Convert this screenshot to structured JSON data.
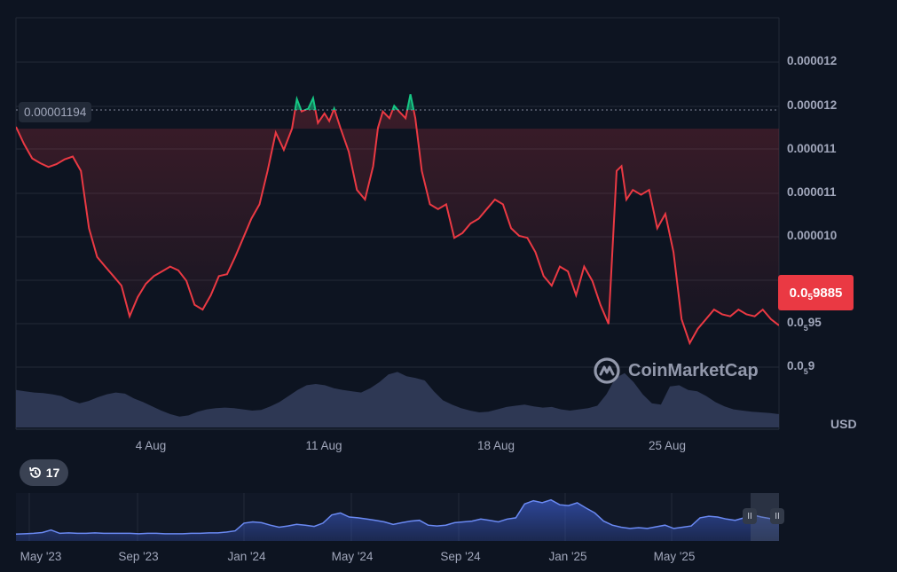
{
  "chart_data": {
    "type": "line",
    "currency": "USD",
    "reference_label": "0.00001194",
    "reference_value": 1.194e-05,
    "current_price": {
      "prefix": "0.0",
      "zeros": "5",
      "digits": "9885"
    },
    "y_ticks": [
      {
        "text": "0.000012"
      },
      {
        "text": "0.000012"
      },
      {
        "text": "0.000011"
      },
      {
        "text": "0.000011"
      },
      {
        "text": "0.000010"
      },
      {
        "prefix": "0.0",
        "sub": "5",
        "rest": "95"
      },
      {
        "prefix": "0.0",
        "sub": "5",
        "rest": "9"
      }
    ],
    "x_ticks": [
      "4 Aug",
      "11 Aug",
      "18 Aug",
      "25 Aug"
    ],
    "navigator_ticks": [
      "May '23",
      "Sep '23",
      "Jan '24",
      "May '24",
      "Sep '24",
      "Jan '25",
      "May '25"
    ],
    "price_series": [
      {
        "t": 0,
        "v": 1.196e-05
      },
      {
        "t": 0.5,
        "v": 1.178e-05
      },
      {
        "t": 1,
        "v": 1.163e-05
      },
      {
        "t": 1.5,
        "v": 1.158e-05
      },
      {
        "t": 2,
        "v": 1.154e-05
      },
      {
        "t": 2.5,
        "v": 1.157e-05
      },
      {
        "t": 3,
        "v": 1.162e-05
      },
      {
        "t": 3.5,
        "v": 1.165e-05
      },
      {
        "t": 4,
        "v": 1.15e-05
      },
      {
        "t": 4.5,
        "v": 1.09e-05
      },
      {
        "t": 5,
        "v": 1.06e-05
      },
      {
        "t": 5.5,
        "v": 1.05e-05
      },
      {
        "t": 6,
        "v": 1.04e-05
      },
      {
        "t": 6.5,
        "v": 1.03e-05
      },
      {
        "t": 7,
        "v": 9.98e-06
      },
      {
        "t": 7.5,
        "v": 1.018e-05
      },
      {
        "t": 8,
        "v": 1.032e-05
      },
      {
        "t": 8.5,
        "v": 1.04e-05
      },
      {
        "t": 9,
        "v": 1.045e-05
      },
      {
        "t": 9.5,
        "v": 1.05e-05
      },
      {
        "t": 10,
        "v": 1.046e-05
      },
      {
        "t": 10.5,
        "v": 1.035e-05
      },
      {
        "t": 11,
        "v": 1.01e-05
      },
      {
        "t": 11.5,
        "v": 1.005e-05
      },
      {
        "t": 12,
        "v": 1.02e-05
      },
      {
        "t": 12.5,
        "v": 1.04e-05
      },
      {
        "t": 13,
        "v": 1.042e-05
      },
      {
        "t": 13.5,
        "v": 1.06e-05
      },
      {
        "t": 14,
        "v": 1.08e-05
      },
      {
        "t": 14.5,
        "v": 1.1e-05
      },
      {
        "t": 15,
        "v": 1.115e-05
      },
      {
        "t": 15.5,
        "v": 1.15e-05
      },
      {
        "t": 16,
        "v": 1.19e-05
      },
      {
        "t": 16.5,
        "v": 1.172e-05
      },
      {
        "t": 17,
        "v": 1.194e-05
      },
      {
        "t": 17.3,
        "v": 1.225e-05
      },
      {
        "t": 17.6,
        "v": 1.212e-05
      },
      {
        "t": 18,
        "v": 1.215e-05
      },
      {
        "t": 18.3,
        "v": 1.226e-05
      },
      {
        "t": 18.6,
        "v": 1.2e-05
      },
      {
        "t": 19,
        "v": 1.21e-05
      },
      {
        "t": 19.3,
        "v": 1.202e-05
      },
      {
        "t": 19.6,
        "v": 1.215e-05
      },
      {
        "t": 20,
        "v": 1.194e-05
      },
      {
        "t": 20.5,
        "v": 1.17e-05
      },
      {
        "t": 21,
        "v": 1.13e-05
      },
      {
        "t": 21.5,
        "v": 1.12e-05
      },
      {
        "t": 22,
        "v": 1.155e-05
      },
      {
        "t": 22.3,
        "v": 1.195e-05
      },
      {
        "t": 22.6,
        "v": 1.212e-05
      },
      {
        "t": 23,
        "v": 1.205e-05
      },
      {
        "t": 23.3,
        "v": 1.218e-05
      },
      {
        "t": 23.6,
        "v": 1.212e-05
      },
      {
        "t": 24,
        "v": 1.205e-05
      },
      {
        "t": 24.3,
        "v": 1.23e-05
      },
      {
        "t": 24.6,
        "v": 1.205e-05
      },
      {
        "t": 25,
        "v": 1.15e-05
      },
      {
        "t": 25.5,
        "v": 1.115e-05
      },
      {
        "t": 26,
        "v": 1.11e-05
      },
      {
        "t": 26.5,
        "v": 1.115e-05
      },
      {
        "t": 27,
        "v": 1.08e-05
      },
      {
        "t": 27.5,
        "v": 1.085e-05
      },
      {
        "t": 28,
        "v": 1.095e-05
      },
      {
        "t": 28.5,
        "v": 1.1e-05
      },
      {
        "t": 29,
        "v": 1.11e-05
      },
      {
        "t": 29.5,
        "v": 1.12e-05
      },
      {
        "t": 30,
        "v": 1.115e-05
      },
      {
        "t": 30.5,
        "v": 1.09e-05
      },
      {
        "t": 31,
        "v": 1.082e-05
      },
      {
        "t": 31.5,
        "v": 1.08e-05
      },
      {
        "t": 32,
        "v": 1.065e-05
      },
      {
        "t": 32.5,
        "v": 1.04e-05
      },
      {
        "t": 33,
        "v": 1.03e-05
      },
      {
        "t": 33.5,
        "v": 1.05e-05
      },
      {
        "t": 34,
        "v": 1.045e-05
      },
      {
        "t": 34.5,
        "v": 1.02e-05
      },
      {
        "t": 35,
        "v": 1.05e-05
      },
      {
        "t": 35.5,
        "v": 1.035e-05
      },
      {
        "t": 36,
        "v": 1.01e-05
      },
      {
        "t": 36.5,
        "v": 9.9e-06
      },
      {
        "t": 37,
        "v": 1.15e-05
      },
      {
        "t": 37.3,
        "v": 1.155e-05
      },
      {
        "t": 37.6,
        "v": 1.12e-05
      },
      {
        "t": 38,
        "v": 1.13e-05
      },
      {
        "t": 38.5,
        "v": 1.125e-05
      },
      {
        "t": 39,
        "v": 1.13e-05
      },
      {
        "t": 39.5,
        "v": 1.09e-05
      },
      {
        "t": 40,
        "v": 1.105e-05
      },
      {
        "t": 40.5,
        "v": 1.065e-05
      },
      {
        "t": 41,
        "v": 9.95e-06
      },
      {
        "t": 41.5,
        "v": 9.7e-06
      },
      {
        "t": 42,
        "v": 9.85e-06
      },
      {
        "t": 42.5,
        "v": 9.95e-06
      },
      {
        "t": 43,
        "v": 1.005e-05
      },
      {
        "t": 43.5,
        "v": 1e-05
      },
      {
        "t": 44,
        "v": 9.98e-06
      },
      {
        "t": 44.5,
        "v": 1.005e-05
      },
      {
        "t": 45,
        "v": 1e-05
      },
      {
        "t": 45.5,
        "v": 9.98e-06
      },
      {
        "t": 46,
        "v": 1.005e-05
      },
      {
        "t": 46.5,
        "v": 9.95e-06
      },
      {
        "t": 47,
        "v": 9.885e-06
      }
    ],
    "volume": [
      0.62,
      0.6,
      0.58,
      0.57,
      0.55,
      0.52,
      0.45,
      0.4,
      0.44,
      0.5,
      0.55,
      0.58,
      0.56,
      0.48,
      0.42,
      0.35,
      0.28,
      0.22,
      0.18,
      0.2,
      0.26,
      0.3,
      0.32,
      0.33,
      0.32,
      0.3,
      0.28,
      0.29,
      0.35,
      0.42,
      0.52,
      0.62,
      0.7,
      0.72,
      0.7,
      0.65,
      0.62,
      0.6,
      0.58,
      0.65,
      0.75,
      0.88,
      0.92,
      0.85,
      0.82,
      0.78,
      0.6,
      0.45,
      0.38,
      0.32,
      0.28,
      0.25,
      0.26,
      0.3,
      0.34,
      0.36,
      0.38,
      0.35,
      0.33,
      0.34,
      0.3,
      0.28,
      0.3,
      0.32,
      0.36,
      0.55,
      0.82,
      0.9,
      0.75,
      0.55,
      0.4,
      0.38,
      0.68,
      0.7,
      0.62,
      0.6,
      0.52,
      0.42,
      0.35,
      0.3,
      0.28,
      0.26,
      0.25,
      0.24,
      0.22
    ],
    "navigator_series": [
      0.08,
      0.09,
      0.1,
      0.12,
      0.18,
      0.1,
      0.11,
      0.1,
      0.1,
      0.11,
      0.1,
      0.1,
      0.1,
      0.1,
      0.09,
      0.1,
      0.1,
      0.09,
      0.09,
      0.09,
      0.1,
      0.1,
      0.11,
      0.11,
      0.13,
      0.16,
      0.35,
      0.38,
      0.36,
      0.3,
      0.25,
      0.28,
      0.32,
      0.3,
      0.27,
      0.35,
      0.55,
      0.6,
      0.5,
      0.48,
      0.45,
      0.42,
      0.38,
      0.32,
      0.36,
      0.4,
      0.42,
      0.3,
      0.28,
      0.3,
      0.36,
      0.38,
      0.4,
      0.45,
      0.42,
      0.38,
      0.45,
      0.48,
      0.82,
      0.9,
      0.85,
      0.92,
      0.8,
      0.78,
      0.85,
      0.72,
      0.6,
      0.4,
      0.3,
      0.25,
      0.22,
      0.24,
      0.22,
      0.26,
      0.3,
      0.22,
      0.25,
      0.28,
      0.48,
      0.52,
      0.5,
      0.45,
      0.42,
      0.48,
      0.55,
      0.5,
      0.46,
      0.44
    ]
  },
  "ui": {
    "history_count": "17",
    "watermark": "CoinMarketCap",
    "currency_label": "USD"
  },
  "colors": {
    "background": "#0d1421",
    "down": "#ea3943",
    "up": "#16c784",
    "volume": "#323c5a",
    "navigator": "#6a89f2"
  }
}
